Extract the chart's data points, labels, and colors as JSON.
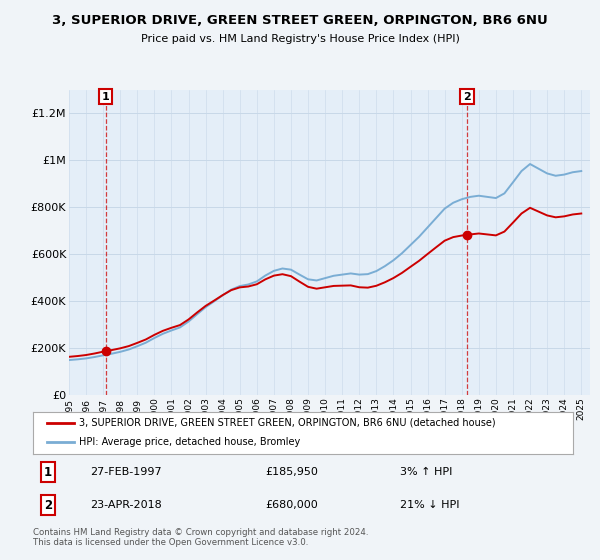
{
  "title": "3, SUPERIOR DRIVE, GREEN STREET GREEN, ORPINGTON, BR6 6NU",
  "subtitle": "Price paid vs. HM Land Registry's House Price Index (HPI)",
  "sale1_date": 1997.15,
  "sale1_price": 185950,
  "sale1_label": "27-FEB-1997",
  "sale1_amount": "£185,950",
  "sale1_hpi": "3% ↑ HPI",
  "sale2_date": 2018.31,
  "sale2_price": 680000,
  "sale2_label": "23-APR-2018",
  "sale2_amount": "£680,000",
  "sale2_hpi": "21% ↓ HPI",
  "legend1": "3, SUPERIOR DRIVE, GREEN STREET GREEN, ORPINGTON, BR6 6NU (detached house)",
  "legend2": "HPI: Average price, detached house, Bromley",
  "footer": "Contains HM Land Registry data © Crown copyright and database right 2024.\nThis data is licensed under the Open Government Licence v3.0.",
  "hpi_color": "#7aadd4",
  "price_color": "#cc0000",
  "marker_color": "#cc0000",
  "bg_color": "#f0f4f8",
  "plot_bg": "#e4eef8",
  "grid_color": "#c8d8e8",
  "ylim": [
    0,
    1300000
  ],
  "xlim": [
    1995.0,
    2025.5
  ],
  "years_hpi": [
    1995.0,
    1995.5,
    1996.0,
    1996.5,
    1997.0,
    1997.5,
    1998.0,
    1998.5,
    1999.0,
    1999.5,
    2000.0,
    2000.5,
    2001.0,
    2001.5,
    2002.0,
    2002.5,
    2003.0,
    2003.5,
    2004.0,
    2004.5,
    2005.0,
    2005.5,
    2006.0,
    2006.5,
    2007.0,
    2007.5,
    2008.0,
    2008.5,
    2009.0,
    2009.5,
    2010.0,
    2010.5,
    2011.0,
    2011.5,
    2012.0,
    2012.5,
    2013.0,
    2013.5,
    2014.0,
    2014.5,
    2015.0,
    2015.5,
    2016.0,
    2016.5,
    2017.0,
    2017.5,
    2018.0,
    2018.5,
    2019.0,
    2019.5,
    2020.0,
    2020.5,
    2021.0,
    2021.5,
    2022.0,
    2022.5,
    2023.0,
    2023.5,
    2024.0,
    2024.5,
    2025.0
  ],
  "hpi_values": [
    148000,
    151000,
    155000,
    161000,
    168000,
    175000,
    183000,
    193000,
    207000,
    222000,
    242000,
    260000,
    274000,
    287000,
    312000,
    343000,
    373000,
    398000,
    424000,
    448000,
    463000,
    470000,
    483000,
    508000,
    528000,
    538000,
    533000,
    512000,
    492000,
    487000,
    497000,
    507000,
    512000,
    517000,
    512000,
    514000,
    527000,
    548000,
    573000,
    603000,
    638000,
    673000,
    713000,
    753000,
    793000,
    818000,
    833000,
    843000,
    848000,
    843000,
    838000,
    858000,
    905000,
    953000,
    983000,
    963000,
    943000,
    933000,
    938000,
    948000,
    953000
  ]
}
